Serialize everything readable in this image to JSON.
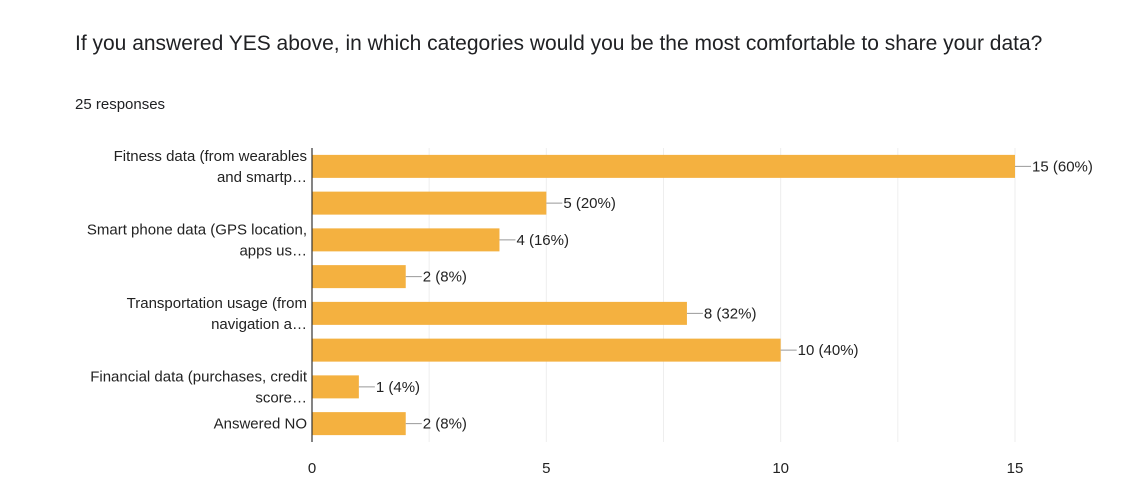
{
  "question": {
    "title": "If you answered YES above, in which categories would you be the most comfortable to share your data?",
    "responses": "25 responses"
  },
  "colors": {
    "bar": "#f4b140",
    "grid": "#eeeeee",
    "axis": "#333333",
    "text": "#222222"
  },
  "chart_data": {
    "type": "bar",
    "orientation": "horizontal",
    "categories": [
      [
        "Fitness data (from wearables",
        "and smartp…"
      ],
      [],
      [
        "Smart phone data (GPS location,",
        "apps us…"
      ],
      [],
      [
        "Transportation usage (from",
        "navigation a…"
      ],
      [],
      [
        "Financial data (purchases, credit",
        "score…"
      ],
      [
        "Answered NO"
      ]
    ],
    "values": [
      15,
      5,
      4,
      2,
      8,
      10,
      1,
      2
    ],
    "value_labels": [
      "15 (60%)",
      "5 (20%)",
      "4 (16%)",
      "2 (8%)",
      "8 (32%)",
      "10 (40%)",
      "1 (4%)",
      "2 (8%)"
    ],
    "xlim": [
      0,
      15
    ],
    "xticks": [
      0,
      5,
      10,
      15
    ],
    "grid": true,
    "title": "",
    "xlabel": "",
    "ylabel": ""
  }
}
